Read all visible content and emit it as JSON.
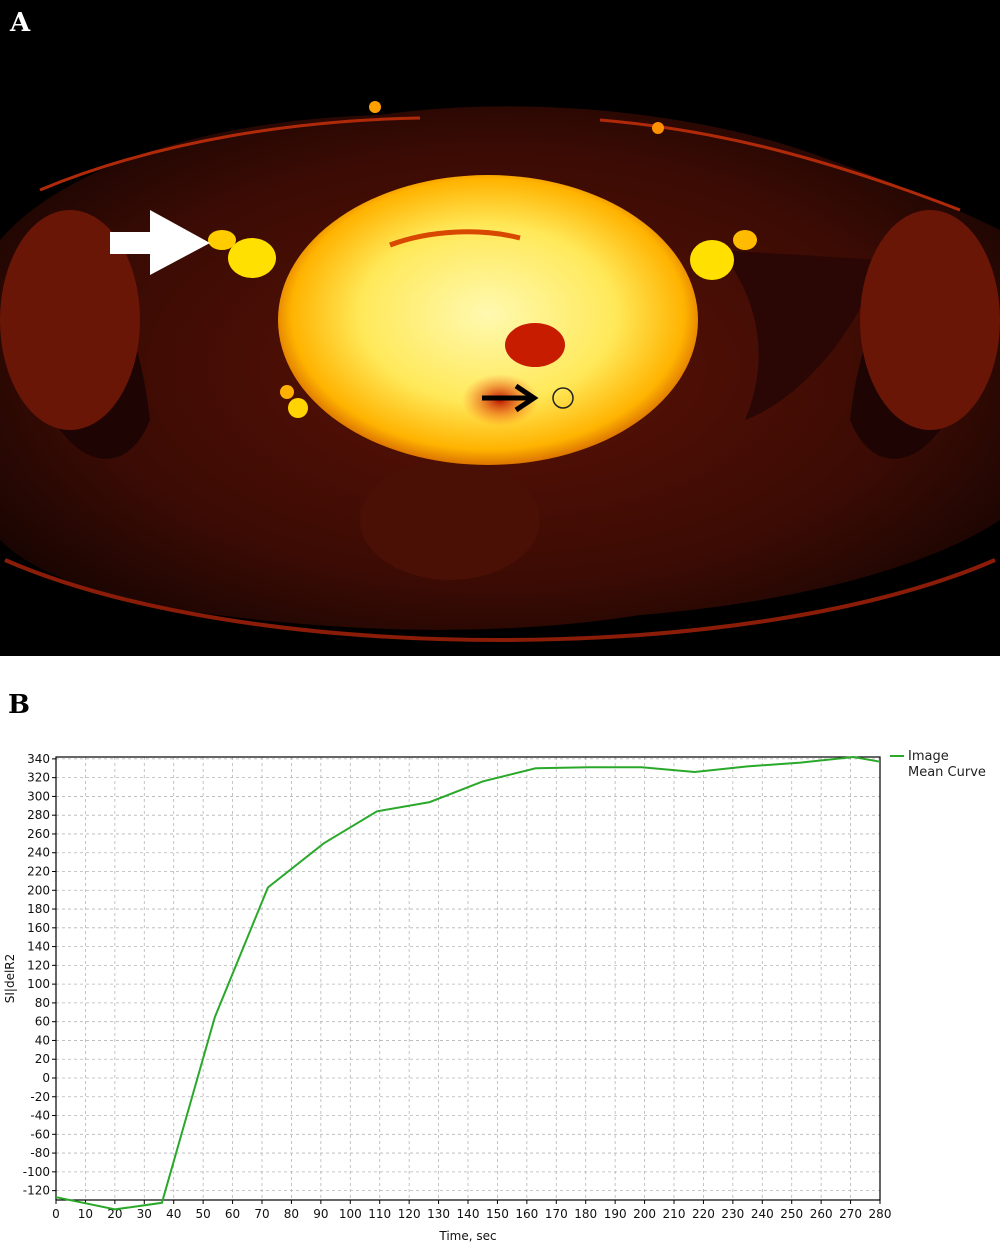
{
  "panel_a": {
    "label": "A",
    "colors": {
      "background": "#000000",
      "tissue": "#7a1405",
      "uterus_core": "#fff27a",
      "uterus_edge": "#ffb000"
    },
    "arrows": [
      "white-arrow",
      "black-arrow"
    ]
  },
  "panel_b": {
    "label": "B"
  },
  "chart_data": {
    "type": "line",
    "xlabel": "Time, sec",
    "ylabel": "SI|delR2",
    "xlim": [
      0,
      280
    ],
    "ylim": [
      -130,
      342
    ],
    "x_ticks": [
      0,
      10,
      20,
      30,
      40,
      50,
      60,
      70,
      80,
      90,
      100,
      110,
      120,
      130,
      140,
      150,
      160,
      170,
      180,
      190,
      200,
      210,
      220,
      230,
      240,
      250,
      260,
      270,
      280
    ],
    "y_ticks": [
      340,
      320,
      300,
      280,
      260,
      240,
      220,
      200,
      180,
      160,
      140,
      120,
      100,
      80,
      60,
      40,
      20,
      0,
      -20,
      -40,
      -60,
      -80,
      -100,
      -120
    ],
    "grid": true,
    "legend_position": "top-right",
    "series": [
      {
        "name": "Image Mean Curve",
        "color": "#2aa82a",
        "points": [
          [
            0,
            -127
          ],
          [
            20,
            -140
          ],
          [
            36,
            -133
          ],
          [
            54,
            65
          ],
          [
            72,
            203
          ],
          [
            91,
            250
          ],
          [
            109,
            284
          ],
          [
            127,
            294
          ],
          [
            145,
            316
          ],
          [
            163,
            330
          ],
          [
            181,
            331
          ],
          [
            199,
            331
          ],
          [
            217,
            326
          ],
          [
            235,
            332
          ],
          [
            253,
            336
          ],
          [
            271,
            342
          ],
          [
            280,
            337
          ]
        ]
      }
    ]
  }
}
